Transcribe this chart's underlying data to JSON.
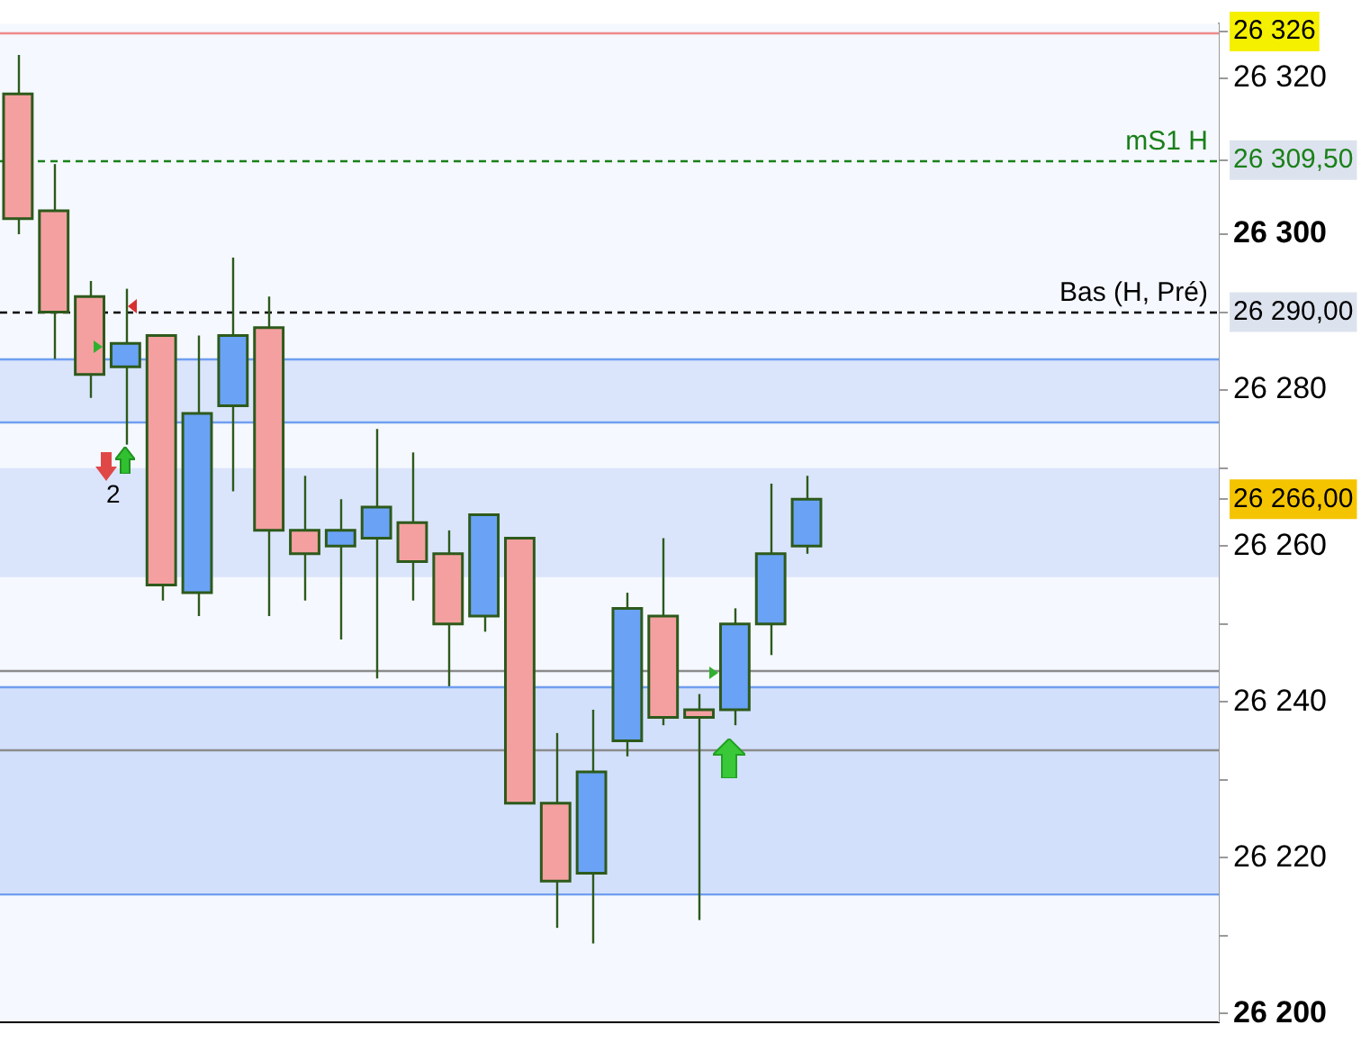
{
  "chart_data": {
    "type": "candlestick",
    "categories": [
      null,
      null,
      null,
      null,
      null,
      null,
      null,
      null,
      null,
      null,
      null,
      null,
      null,
      null,
      null,
      null,
      null,
      null,
      null,
      null,
      null,
      null,
      null,
      null,
      null,
      null,
      null,
      null,
      null,
      null,
      null,
      null,
      null,
      null
    ],
    "ohlc": [
      [
        26318,
        26323,
        26300,
        26302
      ],
      [
        26303,
        26309,
        26284,
        26290
      ],
      [
        26292,
        26294,
        26279,
        26282
      ],
      [
        26283,
        26293,
        26273,
        26286
      ],
      [
        26287,
        26287,
        26253,
        26255
      ],
      [
        26254,
        26287,
        26251,
        26277
      ],
      [
        26278,
        26297,
        26267,
        26287
      ],
      [
        26288,
        26292,
        26251,
        26262
      ],
      [
        26262,
        26269,
        26253,
        26259
      ],
      [
        26260,
        26266,
        26248,
        26262
      ],
      [
        26261,
        26275,
        26243,
        26265
      ],
      [
        26263,
        26272,
        26253,
        26258
      ],
      [
        26259,
        26262,
        26242,
        26250
      ],
      [
        26251,
        26264,
        26249,
        26264
      ],
      [
        26261,
        26261,
        26227,
        26227
      ],
      [
        26227,
        26236,
        26211,
        26217
      ],
      [
        26218,
        26239,
        26209,
        26231
      ],
      [
        26235,
        26254,
        26233,
        26252
      ],
      [
        26251,
        26261,
        26237,
        26238
      ],
      [
        26239,
        26241,
        26212,
        26238
      ],
      [
        26239,
        26252,
        26237,
        26250
      ],
      [
        26250,
        26268,
        26246,
        26259
      ],
      [
        26260,
        26269,
        26259,
        26266
      ],
      null,
      null,
      null,
      null,
      null,
      null,
      null,
      null,
      null,
      null,
      null
    ],
    "colors": [
      "#f4a0a0",
      "#f4a0a0",
      "#f4a0a0",
      "#6aa2f6",
      "#f4a0a0",
      "#6aa2f6",
      "#6aa2f6",
      "#f4a0a0",
      "#f4a0a0",
      "#6aa2f6",
      "#6aa2f6",
      "#f4a0a0",
      "#f4a0a0",
      "#6aa2f6",
      "#f4a0a0",
      "#f4a0a0",
      "#6aa2f6",
      "#6aa2f6",
      "#f4a0a0",
      "#f4a0a0",
      "#6aa2f6",
      "#6aa2f6",
      "#6aa2f6",
      null,
      null,
      null,
      null,
      null,
      null,
      null,
      null,
      null,
      null,
      null
    ],
    "ylim": [
      26199,
      26327
    ],
    "yticks": [
      {
        "value": 26326,
        "label": "26 326"
      },
      {
        "value": 26309.5,
        "label": "26 309,50"
      },
      {
        "value": 26290,
        "label": "26 290,00"
      },
      {
        "value": 26266,
        "label": "26 266,00"
      },
      {
        "value": 26200,
        "label": "26 200"
      },
      {
        "value": 26210,
        "label": null
      },
      {
        "value": 26220,
        "label": "26 220"
      },
      {
        "value": 26230,
        "label": null
      },
      {
        "value": 26240,
        "label": "26 240"
      },
      {
        "value": 26250,
        "label": null
      },
      {
        "value": 26260,
        "label": "26 260"
      },
      {
        "value": 26270,
        "label": null
      },
      {
        "value": 26280,
        "label": "26 280"
      },
      {
        "value": 26300,
        "label": "26 300"
      },
      {
        "value": 26320,
        "label": "26 320"
      }
    ],
    "tick_labels": "y",
    "grid": false,
    "legend": false,
    "bands": [
      {
        "axis": "y",
        "from": 26276,
        "to": 26284,
        "color": "#dae5fc"
      },
      {
        "axis": "y",
        "from": 26256,
        "to": 26270,
        "color": "#dae5fc"
      },
      {
        "axis": "y",
        "from": 26215.5,
        "to": 26242,
        "color": "#d3e0fc"
      }
    ],
    "ref_lines": [
      {
        "axis": "y",
        "value": 26326,
        "color": "#f08a8a",
        "line_style": "solid"
      },
      {
        "axis": "y",
        "value": 26309.5,
        "label": "mS1 H",
        "color": "#1a801a",
        "line_style": "dashed"
      },
      {
        "axis": "y",
        "value": 26290,
        "label": "Bas (H, Pré)",
        "color": "#000000",
        "line_style": "dashed"
      },
      {
        "axis": "y",
        "value": 26284,
        "color": "#6f9ef0",
        "line_style": "solid"
      },
      {
        "axis": "y",
        "value": 26276,
        "color": "#6f9ef0",
        "line_style": "solid"
      },
      {
        "axis": "y",
        "value": 26244,
        "color": "#8c8c8c",
        "line_style": "solid"
      },
      {
        "axis": "y",
        "value": 26242,
        "color": "#6f9ef0",
        "line_style": "solid"
      },
      {
        "axis": "y",
        "value": 26234,
        "color": "#8c8c8c",
        "line_style": "solid"
      },
      {
        "axis": "y",
        "value": 26215.5,
        "color": "#6f9ef0",
        "line_style": "solid"
      }
    ],
    "annotations": [
      "2"
    ]
  }
}
